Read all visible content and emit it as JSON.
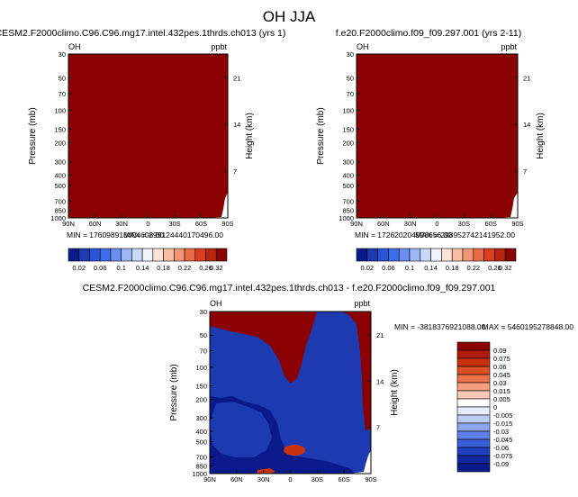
{
  "page": {
    "title": "OH JJA"
  },
  "colors": {
    "fill_dark_red": "#8b0000",
    "fill_blue": "#1e3ab0",
    "fill_deep_blue": "#0a1a8a",
    "fill_orange_red": "#c8330e",
    "stripe_white": "#ffffff"
  },
  "chart_data": [
    {
      "type": "heatmap",
      "title": "CESM2.F2000climo.C96.C96.mg17.intel.432pes.1thrds.ch013 (yrs 1)",
      "left_label": "OH",
      "right_label": "ppbt",
      "ylabel": "Pressure (mb)",
      "ylabel_right": "Height (km)",
      "x_ticks": [
        "90N",
        "60N",
        "30N",
        "0",
        "30S",
        "60S",
        "90S"
      ],
      "y_ticks": [
        "30",
        "50",
        "70",
        "100",
        "150",
        "200",
        "300",
        "400",
        "500",
        "700",
        "850",
        "1000"
      ],
      "y_ticks_right": [
        "21",
        "14",
        "7"
      ],
      "min_text": "MIN = 176098910404608.00",
      "max_text": "MAX = 299124440170496.00",
      "field_level": "above 0.32 (entire domain)",
      "fill_color": "#8b0000"
    },
    {
      "type": "heatmap",
      "title": "f.e20.F2000climo.f09_f09.297.001 (yrs 2-11)",
      "left_label": "OH",
      "right_label": "ppbt",
      "ylabel": "Pressure (mb)",
      "ylabel_right": "Height (km)",
      "x_ticks": [
        "90N",
        "60N",
        "30N",
        "0",
        "30S",
        "60S",
        "90S"
      ],
      "y_ticks": [
        "30",
        "50",
        "70",
        "100",
        "150",
        "200",
        "300",
        "400",
        "500",
        "700",
        "850",
        "1000"
      ],
      "y_ticks_right": [
        "21",
        "14",
        "7"
      ],
      "min_text": "MIN = 172620204998656.00",
      "max_text": "MAX = 298952742141952.00",
      "field_level": "above 0.32 (entire domain)",
      "fill_color": "#8b0000"
    },
    {
      "type": "heatmap",
      "title": "CESM2.F2000climo.C96.C96.mg17.intel.432pes.1thrds.ch013 - f.e20.F2000climo.f09_f09.297.001",
      "left_label": "OH",
      "right_label": "ppbt",
      "ylabel": "Pressure (mb)",
      "ylabel_right": "Height (km)",
      "x_ticks": [
        "90N",
        "60N",
        "30N",
        "0",
        "30S",
        "60S",
        "90S"
      ],
      "y_ticks": [
        "30",
        "50",
        "70",
        "100",
        "150",
        "200",
        "300",
        "400",
        "500",
        "700",
        "850",
        "1000"
      ],
      "y_ticks_right": [
        "21",
        "14",
        "7"
      ],
      "min_text": "MIN = -3818376921088.00",
      "max_text": "MAX = 5460195278848.00",
      "fill_color": "#1e3ab0"
    }
  ],
  "colorbars": {
    "abs": {
      "labels": [
        "0.02",
        "0.06",
        "0.1",
        "0.14",
        "0.18",
        "0.22",
        "0.26",
        "0.32"
      ],
      "colors": [
        "#0a1a8a",
        "#1e3ab0",
        "#2b55d8",
        "#3e6fe8",
        "#6a8ff0",
        "#9cb6f5",
        "#c9d7f8",
        "#eef3fc",
        "#fde3d6",
        "#f8bea6",
        "#f39675",
        "#ea6a45",
        "#d8401f",
        "#b8240d",
        "#8b0000"
      ]
    },
    "diff": {
      "labels": [
        "0.09",
        "0.075",
        "0.06",
        "0.045",
        "0.03",
        "0.015",
        "0.005",
        "0",
        "-0.005",
        "-0.015",
        "-0.03",
        "-0.045",
        "-0.06",
        "-0.075",
        "-0.09"
      ],
      "colors": [
        "#8b0000",
        "#b01a08",
        "#c8330e",
        "#dd4e22",
        "#ec7347",
        "#f59d7c",
        "#fac9b5",
        "#ffffff",
        "#e6ecfb",
        "#bccbf5",
        "#8ea6ee",
        "#5f80e6",
        "#3a5fd9",
        "#2140bf",
        "#13289e",
        "#0a1a8a"
      ]
    }
  }
}
